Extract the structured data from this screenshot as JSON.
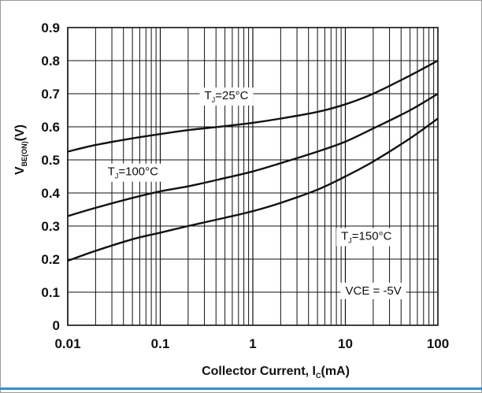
{
  "chart_data": {
    "type": "line",
    "xscale": "log",
    "xlim": [
      0.01,
      100
    ],
    "ylim": [
      0,
      0.9
    ],
    "grid": true,
    "xticks": [
      "0.01",
      "0.1",
      "1",
      "10",
      "100"
    ],
    "yticks": [
      "0",
      "0.1",
      "0.2",
      "0.3",
      "0.4",
      "0.5",
      "0.6",
      "0.7",
      "0.8",
      "0.9"
    ],
    "xlabel": {
      "main": "Collector Current, I",
      "sub": "C",
      "unit": "(mA)"
    },
    "ylabel": {
      "main": "V",
      "sub": "BE(ON)",
      "unit": "(V)"
    },
    "series": [
      {
        "name": "TJ=25°C",
        "x": [
          0.01,
          0.02,
          0.05,
          0.1,
          0.2,
          0.5,
          1,
          2,
          5,
          10,
          20,
          50,
          100
        ],
        "y": [
          0.525,
          0.545,
          0.565,
          0.578,
          0.59,
          0.602,
          0.612,
          0.625,
          0.645,
          0.668,
          0.7,
          0.755,
          0.8
        ]
      },
      {
        "name": "TJ=100°C",
        "x": [
          0.01,
          0.02,
          0.05,
          0.1,
          0.2,
          0.5,
          1,
          2,
          5,
          10,
          20,
          50,
          100
        ],
        "y": [
          0.33,
          0.355,
          0.385,
          0.405,
          0.42,
          0.445,
          0.465,
          0.49,
          0.525,
          0.555,
          0.595,
          0.65,
          0.7
        ]
      },
      {
        "name": "TJ=150°C",
        "x": [
          0.01,
          0.02,
          0.05,
          0.1,
          0.2,
          0.5,
          1,
          2,
          5,
          10,
          20,
          50,
          100
        ],
        "y": [
          0.195,
          0.225,
          0.26,
          0.28,
          0.3,
          0.325,
          0.345,
          0.37,
          0.41,
          0.45,
          0.495,
          0.565,
          0.625
        ]
      }
    ],
    "annotations": [
      {
        "main": "T",
        "sub": "J",
        "rest": "=25°C",
        "x": 0.3,
        "y": 0.695
      },
      {
        "main": "T",
        "sub": "J",
        "rest": "=100°C",
        "x": 0.027,
        "y": 0.465
      },
      {
        "main": "T",
        "sub": "J",
        "rest": "=150°C",
        "x": 9,
        "y": 0.27
      },
      {
        "main": "VCE = -5V",
        "sub": "",
        "rest": "",
        "x": 10,
        "y": 0.105
      }
    ]
  }
}
